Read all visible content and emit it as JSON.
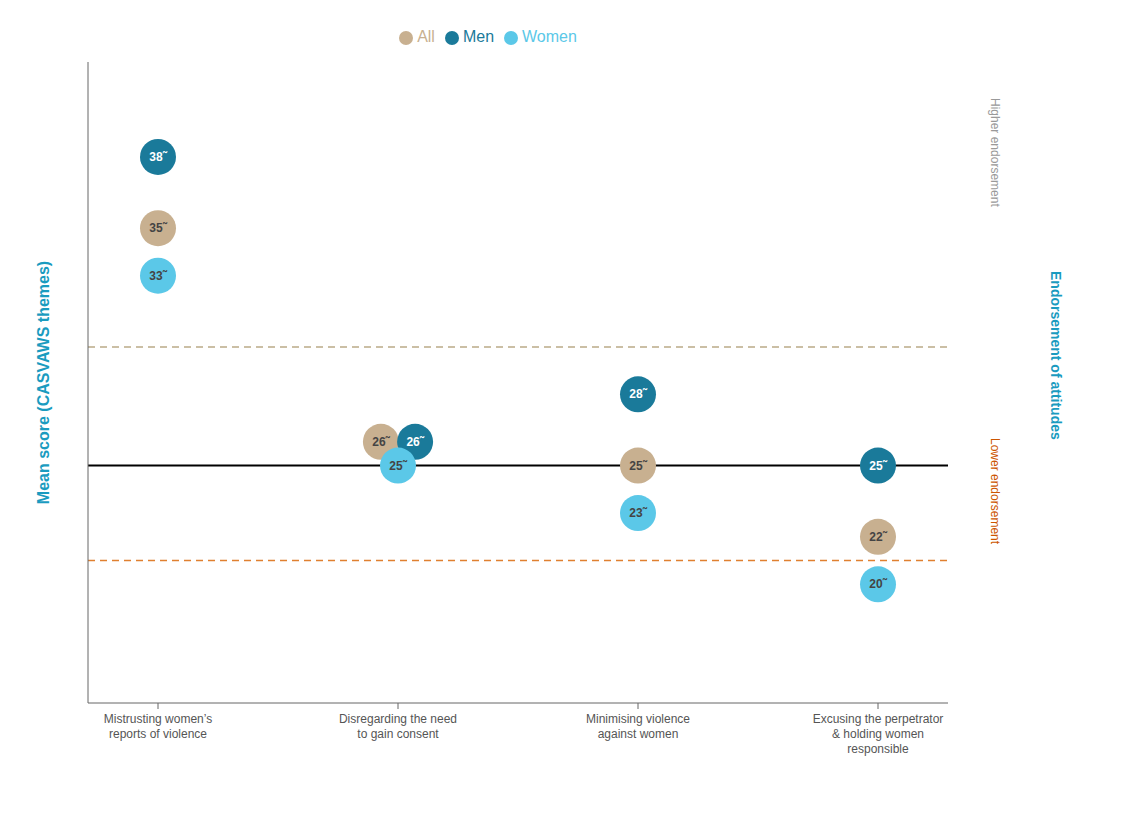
{
  "chart_data": {
    "type": "scatter",
    "ylabel": "Mean score (CASVAWS themes)",
    "categories": [
      "Mistrusting women’s\nreports of violence",
      "Disregarding the need\nto gain consent",
      "Minimising violence\nagainst women",
      "Excusing the perpetrator\n& holding women\nresponsible"
    ],
    "series": [
      {
        "name": "All",
        "color": "#c8b090",
        "values": [
          35,
          26,
          25,
          22
        ],
        "value_labels": [
          "35˜",
          "26˜",
          "25˜",
          "22˜"
        ]
      },
      {
        "name": "Men",
        "color": "#1a7a9a",
        "values": [
          38,
          26,
          28,
          25
        ],
        "value_labels": [
          "38˜",
          "26˜",
          "28˜",
          "25˜"
        ]
      },
      {
        "name": "Women",
        "color": "#5bc8e8",
        "values": [
          33,
          25,
          23,
          20
        ],
        "value_labels": [
          "33˜",
          "25˜",
          "23˜",
          "20˜"
        ]
      }
    ],
    "ylim": [
      15,
      42
    ],
    "tick_labels": "x",
    "data_labels": true,
    "legend": "top",
    "grid": false,
    "reference_lines": [
      {
        "value": 30,
        "color": "#bbaa88",
        "line_style": "dashed"
      },
      {
        "value": 25,
        "color": "#000000",
        "line_style": "solid"
      },
      {
        "value": 21,
        "color": "#e08030",
        "line_style": "dashed"
      }
    ],
    "annotations": [
      {
        "text": "Higher endorsement",
        "color": "#999999"
      },
      {
        "text": "Lower endorsement",
        "color": "#cc5500"
      },
      {
        "text": "Endorsement of attitudes",
        "color": "#1a9bbf"
      }
    ]
  }
}
